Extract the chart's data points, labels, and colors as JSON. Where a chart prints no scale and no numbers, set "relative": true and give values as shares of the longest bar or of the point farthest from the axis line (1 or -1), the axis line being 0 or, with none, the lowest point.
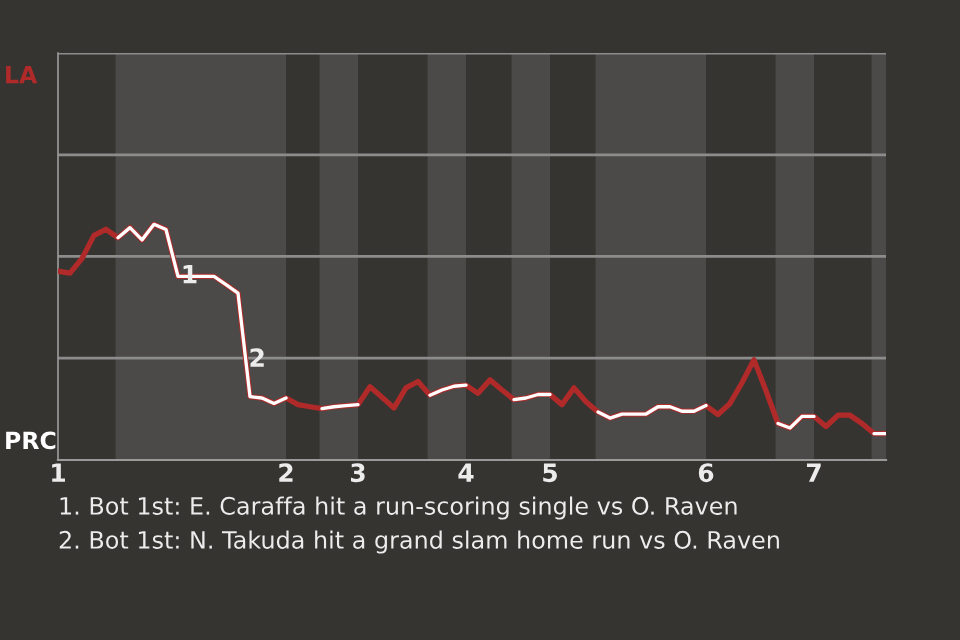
{
  "chart_data": {
    "type": "line",
    "relative": true,
    "categories": [
      "1",
      null,
      null,
      null,
      null,
      null,
      null,
      null,
      null,
      null,
      null,
      null,
      null,
      null,
      null,
      null,
      null,
      null,
      null,
      "2",
      null,
      null,
      null,
      null,
      null,
      "3",
      null,
      null,
      null,
      null,
      null,
      null,
      null,
      null,
      "4",
      null,
      null,
      null,
      null,
      null,
      null,
      "5",
      null,
      null,
      null,
      null,
      null,
      null,
      null,
      null,
      null,
      null,
      null,
      null,
      "6",
      null,
      null,
      null,
      null,
      null,
      null,
      null,
      null,
      "7",
      null,
      null,
      null,
      null,
      null,
      null
    ],
    "series": [
      {
        "color": "#b02a2a",
        "values": [
          0.801,
          0.793,
          0.855,
          0.953,
          0.979,
          0.943,
          0.986,
          0.934,
          1,
          0.978,
          0.779,
          0.779,
          0.779,
          0.779,
          0.744,
          0.708,
          0.269,
          0.263,
          0.24,
          0.263,
          0.235,
          0.226,
          0.218,
          0.226,
          0.231,
          0.235,
          0.311,
          0.266,
          0.221,
          0.306,
          0.333,
          0.275,
          0.297,
          0.313,
          0.318,
          0.283,
          0.34,
          0.297,
          0.256,
          0.263,
          0.278,
          0.278,
          0.235,
          0.306,
          0.247,
          0.204,
          0.178,
          0.195,
          0.195,
          0.195,
          0.226,
          0.226,
          0.207,
          0.207,
          0.231,
          0.193,
          0.24,
          0.328,
          0.425,
          0.294,
          0.155,
          0.136,
          0.185,
          0.185,
          0.142,
          0.19,
          0.19,
          0.155,
          0.112,
          0.112
        ]
      },
      {
        "color": "#ffffff",
        "values": [
          null,
          null,
          null,
          null,
          null,
          0.943,
          0.986,
          0.934,
          1,
          0.978,
          0.779,
          0.779,
          0.779,
          0.779,
          0.744,
          0.708,
          0.269,
          0.263,
          0.24,
          0.263,
          null,
          null,
          0.218,
          0.226,
          0.231,
          0.235,
          null,
          null,
          null,
          null,
          null,
          0.275,
          0.297,
          0.313,
          0.318,
          null,
          null,
          null,
          0.256,
          0.263,
          0.278,
          0.278,
          null,
          null,
          null,
          0.204,
          0.178,
          0.195,
          0.195,
          0.195,
          0.226,
          0.226,
          0.207,
          0.207,
          0.231,
          null,
          null,
          null,
          null,
          null,
          0.155,
          0.136,
          0.185,
          0.185,
          null,
          null,
          null,
          null,
          0.112,
          0.112
        ]
      }
    ],
    "ref_lines": [
      {
        "axis": "y",
        "value": 0.432,
        "color": "#8c8c8c"
      },
      {
        "axis": "y",
        "value": 0.864,
        "color": "#8c8c8c"
      },
      {
        "axis": "y",
        "value": 1.295,
        "color": "#8c8c8c"
      },
      {
        "axis": "y",
        "value": 1.727,
        "color": "#8c8c8c"
      }
    ],
    "annotations": [
      "LA",
      "PRC",
      {
        "text": "1",
        "y": 0.779
      },
      {
        "text": "2",
        "y": 0.425
      },
      "1. Bot 1st: E. Caraffa hit a run-scoring single vs O. Raven",
      "2. Bot 1st: N. Takuda hit a grand slam home run vs O. Raven"
    ]
  }
}
